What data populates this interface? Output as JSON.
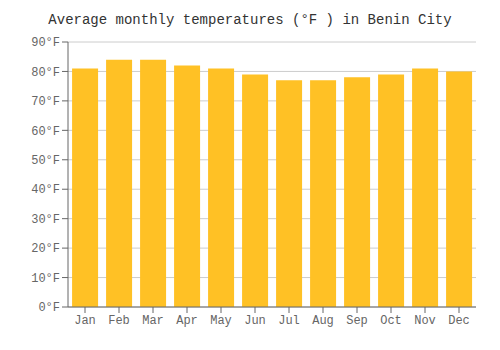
{
  "chart_data": {
    "type": "bar",
    "title": "Average monthly temperatures (°F ) in Benin City",
    "categories": [
      "Jan",
      "Feb",
      "Mar",
      "Apr",
      "May",
      "Jun",
      "Jul",
      "Aug",
      "Sep",
      "Oct",
      "Nov",
      "Dec"
    ],
    "values": [
      81,
      84,
      84,
      82,
      81,
      79,
      77,
      77,
      78,
      79,
      81,
      80
    ],
    "color": "#FFC125",
    "ylim": [
      0,
      90
    ],
    "yticks": [
      {
        "value": 0,
        "label": "0°F"
      },
      {
        "value": 10,
        "label": "10°F"
      },
      {
        "value": 20,
        "label": "20°F"
      },
      {
        "value": 30,
        "label": "30°F"
      },
      {
        "value": 40,
        "label": "40°F"
      },
      {
        "value": 50,
        "label": "50°F"
      },
      {
        "value": 60,
        "label": "60°F"
      },
      {
        "value": 70,
        "label": "70°F"
      },
      {
        "value": 80,
        "label": "80°F"
      },
      {
        "value": 90,
        "label": "90°F"
      }
    ],
    "grid": true
  }
}
